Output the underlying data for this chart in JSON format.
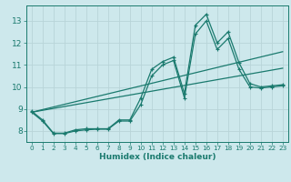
{
  "xlabel": "Humidex (Indice chaleur)",
  "xlim": [
    -0.5,
    23.5
  ],
  "ylim": [
    7.5,
    13.7
  ],
  "yticks": [
    8,
    9,
    10,
    11,
    12,
    13
  ],
  "xticks": [
    0,
    1,
    2,
    3,
    4,
    5,
    6,
    7,
    8,
    9,
    10,
    11,
    12,
    13,
    14,
    15,
    16,
    17,
    18,
    19,
    20,
    21,
    22,
    23
  ],
  "bg_color": "#cde8ec",
  "line_color": "#1a7a6e",
  "grid_color": "#b8d4d8",
  "line1_x": [
    0,
    1,
    2,
    3,
    4,
    5,
    6,
    7,
    8,
    9,
    10,
    11,
    12,
    13,
    14,
    15,
    16,
    17,
    18,
    19,
    20,
    21,
    22,
    23
  ],
  "line1_y": [
    8.9,
    8.5,
    7.9,
    7.9,
    8.05,
    8.1,
    8.1,
    8.1,
    8.5,
    8.5,
    9.5,
    10.8,
    11.15,
    11.35,
    9.7,
    12.8,
    13.3,
    12.0,
    12.5,
    11.1,
    10.15,
    10.0,
    10.05,
    10.1
  ],
  "line2_x": [
    0,
    1,
    2,
    3,
    4,
    5,
    6,
    7,
    8,
    9,
    10,
    11,
    12,
    13,
    14,
    15,
    16,
    17,
    18,
    19,
    20,
    21,
    22,
    23
  ],
  "line2_y": [
    8.85,
    8.45,
    7.88,
    7.88,
    8.0,
    8.05,
    8.08,
    8.08,
    8.45,
    8.45,
    9.2,
    10.5,
    11.0,
    11.2,
    9.5,
    12.4,
    13.0,
    11.7,
    12.2,
    10.8,
    10.0,
    9.95,
    10.0,
    10.05
  ],
  "line3_x": [
    0,
    23
  ],
  "line3_y": [
    8.85,
    11.6
  ],
  "line4_x": [
    0,
    23
  ],
  "line4_y": [
    8.85,
    10.85
  ]
}
